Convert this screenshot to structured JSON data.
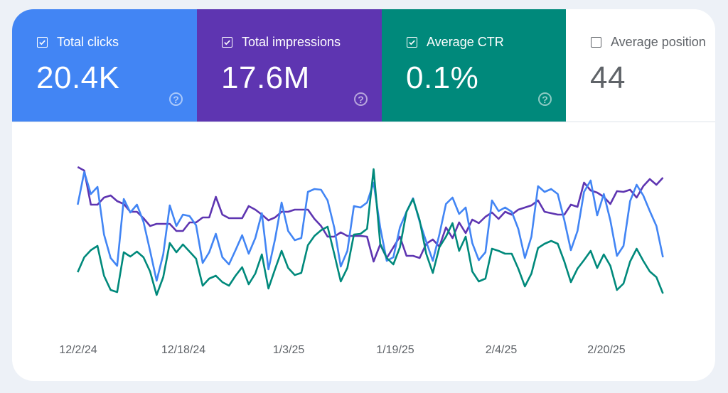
{
  "metrics": [
    {
      "label": "Total clicks",
      "value": "20.4K",
      "checked": true,
      "color": "#4285f4",
      "icon": "help-icon"
    },
    {
      "label": "Total impressions",
      "value": "17.6M",
      "checked": true,
      "color": "#5e35b1",
      "icon": "help-icon"
    },
    {
      "label": "Average CTR",
      "value": "0.1%",
      "checked": true,
      "color": "#00897b",
      "icon": "help-icon"
    },
    {
      "label": "Average position",
      "value": "44",
      "checked": false,
      "color": "#ffffff"
    }
  ],
  "help_glyph": "?",
  "chart_data": {
    "type": "line",
    "title": "",
    "xlabel": "",
    "ylabel": "",
    "x_tick_labels": [
      "12/2/24",
      "12/18/24",
      "1/3/25",
      "1/19/25",
      "2/4/25",
      "2/20/25"
    ],
    "x_range": [
      "12/2/24",
      "3/1/25"
    ],
    "y_note_scale": "relative (no y axis shown)",
    "ylim": [
      0,
      220
    ],
    "grid": false,
    "series": [
      {
        "metric": "Total impressions",
        "color": "#5e35b1",
        "values": [
          205,
          200,
          152,
          152,
          162,
          165,
          157,
          153,
          142,
          142,
          133,
          122,
          125,
          125,
          125,
          115,
          115,
          127,
          127,
          134,
          134,
          163,
          138,
          133,
          133,
          133,
          150,
          145,
          138,
          130,
          134,
          142,
          142,
          145,
          145,
          145,
          132,
          122,
          107,
          107,
          113,
          108,
          108,
          108,
          107,
          72,
          96,
          77,
          92,
          107,
          80,
          80,
          77,
          97,
          103,
          93,
          120,
          105,
          127,
          112,
          131,
          126,
          135,
          141,
          132,
          142,
          138,
          145,
          148,
          151,
          158,
          142,
          140,
          138,
          138,
          152,
          149,
          183,
          172,
          169,
          163,
          153,
          171,
          170,
          173,
          162,
          178,
          188,
          180,
          190
        ]
      },
      {
        "metric": "Total clicks",
        "color": "#4285f4",
        "values": [
          152,
          198,
          167,
          177,
          110,
          77,
          66,
          160,
          141,
          152,
          128,
          87,
          45,
          82,
          151,
          122,
          138,
          136,
          123,
          70,
          85,
          111,
          78,
          68,
          88,
          109,
          83,
          105,
          140,
          61,
          103,
          155,
          115,
          102,
          105,
          170,
          174,
          173,
          158,
          120,
          65,
          87,
          150,
          148,
          155,
          183,
          120,
          73,
          78,
          120,
          142,
          161,
          128,
          100,
          73,
          110,
          153,
          162,
          139,
          148,
          98,
          74,
          85,
          158,
          143,
          148,
          142,
          118,
          77,
          107,
          178,
          170,
          174,
          167,
          130,
          88,
          115,
          170,
          186,
          137,
          167,
          130,
          80,
          94,
          157,
          180,
          165,
          143,
          122,
          78
        ]
      },
      {
        "metric": "Average CTR",
        "color": "#00897b",
        "values": [
          57,
          78,
          88,
          94,
          52,
          32,
          29,
          85,
          79,
          86,
          78,
          58,
          25,
          50,
          98,
          85,
          96,
          86,
          76,
          38,
          48,
          52,
          43,
          38,
          52,
          64,
          40,
          55,
          82,
          34,
          61,
          87,
          63,
          53,
          56,
          95,
          108,
          116,
          121,
          83,
          44,
          63,
          110,
          111,
          118,
          202,
          97,
          77,
          68,
          92,
          142,
          160,
          130,
          83,
          56,
          92,
          107,
          126,
          87,
          107,
          58,
          44,
          48,
          90,
          87,
          83,
          83,
          62,
          37,
          55,
          91,
          97,
          101,
          97,
          72,
          43,
          62,
          74,
          87,
          63,
          82,
          66,
          32,
          41,
          72,
          90,
          73,
          58,
          50,
          27
        ]
      }
    ]
  }
}
